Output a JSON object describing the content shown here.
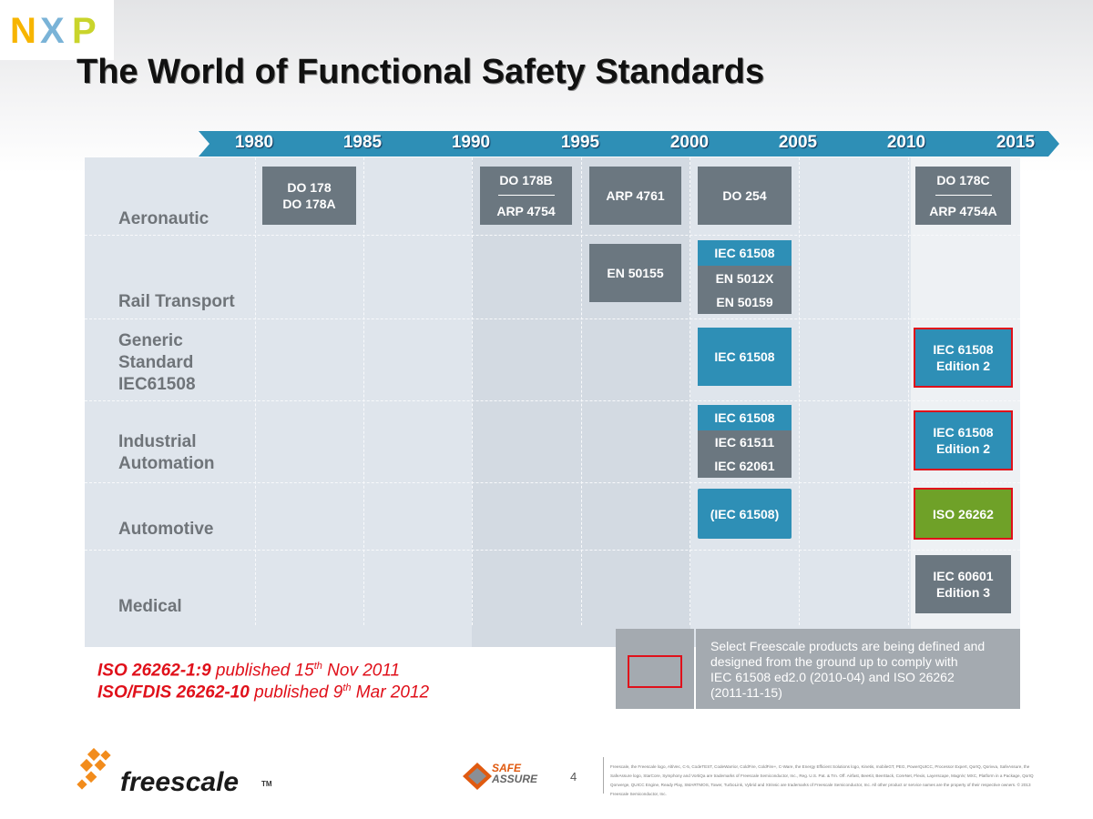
{
  "title": "The World of Functional Safety Standards",
  "logo": {
    "letters": [
      "N",
      "X",
      "P"
    ],
    "colors": {
      "N": "#f7b500",
      "X_left": "#7ab3d7",
      "X_right": "#a5c53d",
      "P": "#c9d42b"
    }
  },
  "timeline": {
    "years": [
      "1980",
      "1985",
      "1990",
      "1995",
      "2000",
      "2005",
      "2010",
      "2015"
    ],
    "color": "#2e8fb6"
  },
  "categories": {
    "aeronautic": "Aeronautic",
    "rail": "Rail Transport",
    "generic": [
      "Generic",
      "Standard",
      "IEC61508"
    ],
    "industrial": [
      "Industrial",
      "Automation"
    ],
    "automotive": "Automotive",
    "medical": "Medical"
  },
  "boxes": {
    "do178": [
      "DO 178",
      "DO 178A"
    ],
    "do178b": "DO 178B",
    "arp4754": "ARP 4754",
    "arp4761": "ARP 4761",
    "do254": "DO 254",
    "do178c": "DO 178C",
    "arp4754a": "ARP 4754A",
    "en50155": "EN 50155",
    "rail_iec61508": "IEC 61508",
    "en5012x": "EN 5012X",
    "en50159": "EN 50159",
    "generic_iec61508": "IEC 61508",
    "generic_ed2": [
      "IEC 61508",
      "Edition 2"
    ],
    "ind_iec61508": "IEC 61508",
    "ind_iec61511": "IEC 61511",
    "ind_iec62061": "IEC 62061",
    "ind_ed2": [
      "IEC 61508",
      "Edition 2"
    ],
    "auto_iec61508": "(IEC 61508)",
    "iso26262": "ISO 26262",
    "iec60601": [
      "IEC 60601",
      "Edition 3"
    ]
  },
  "colors": {
    "gray": "#6b7780",
    "blue": "#2e8fb6",
    "green": "#6fa128",
    "highlight": "#e0101a"
  },
  "legend": {
    "text": [
      "Select Freescale products are being defined and",
      "designed from the ground up to comply with",
      "IEC 61508 ed2.0 (2010-04)  and ISO 26262",
      "(2011-11-15)"
    ]
  },
  "published": [
    {
      "bold": "ISO 26262-1:9",
      "text": " published 15",
      "sup": "th",
      "rest": " Nov 2011"
    },
    {
      "bold": "ISO/FDIS 26262-10",
      "text": " published 9",
      "sup": "th",
      "rest": " Mar 2012"
    }
  ],
  "footer": {
    "brand": "freescale",
    "tm": "TM",
    "safe": "SAFE",
    "assure": "ASSURE",
    "page": "4",
    "fine_print": "Freescale, the Freescale logo, AltiVec, C-5, CodeTEST, CodeWarrior, ColdFire, ColdFire+, C-Ware, the Energy Efficient Solutions logo, Kinetis, mobileGT, PEG, PowerQUICC, Processor Expert, QorIQ, Qorivva, SafeAssure, the SafeAssure logo, StarCore, Symphony and VortiQa are trademarks of Freescale Semiconductor, Inc., Reg. U.S. Pat. & Tm. Off. Airfast, BeeKit, BeeStack, CoreNet, Flexis, Layerscape, MagniV, MXC, Platform in a Package, QorIQ Qonverge, QUICC Engine, Ready Play, SMARTMOS, Tower, TurboLink, Vybrid and Xtrinsic are trademarks of Freescale Semiconductor, Inc. All other product or service names are the property of their respective owners. © 2013 Freescale Semiconductor, Inc."
  }
}
